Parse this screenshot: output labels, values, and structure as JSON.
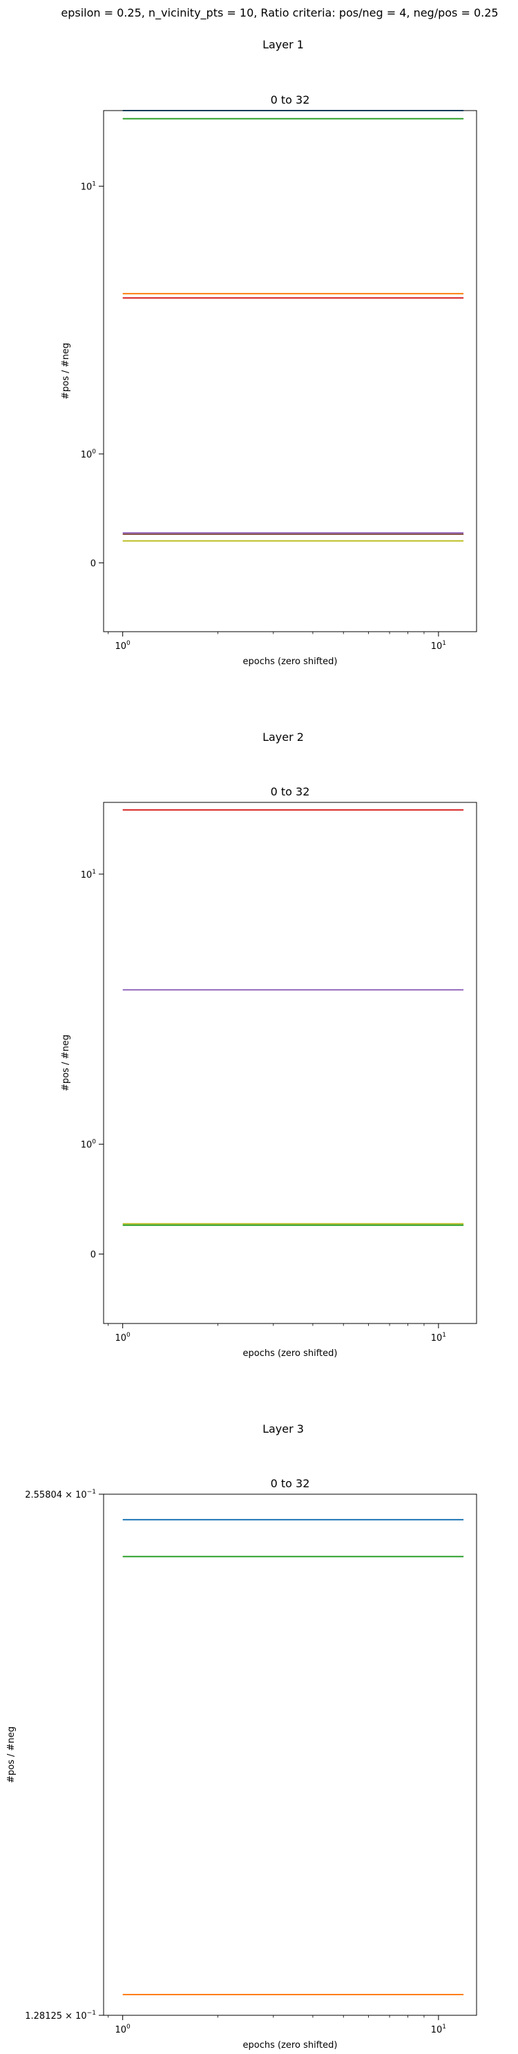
{
  "figure_title": "epsilon = 0.25, n_vicinity_pts = 10, Ratio criteria: pos/neg = 4, neg/pos = 0.25",
  "chart_data": [
    {
      "type": "line",
      "section_title": "Layer 1",
      "title": "0 to 32",
      "xlabel": "epochs (zero shifted)",
      "ylabel": "#pos / #neg",
      "xscale": "log",
      "yscale": "symlog",
      "xlim": [
        0.87,
        13.2
      ],
      "ylim": [
        -0.55,
        16.8
      ],
      "x_ticks": [
        {
          "value": 1,
          "label": "10",
          "exp": "0"
        },
        {
          "value": 10,
          "label": "10",
          "exp": "1"
        }
      ],
      "y_ticks": [
        {
          "value": 0,
          "label": "0",
          "exp": ""
        },
        {
          "value": 1,
          "label": "10",
          "exp": "0"
        },
        {
          "value": 10,
          "label": "10",
          "exp": "1"
        }
      ],
      "x": [
        1,
        12
      ],
      "series": [
        {
          "color": "#1f77b4",
          "values": [
            16.8,
            16.8
          ]
        },
        {
          "color": "#2ca02c",
          "values": [
            15.9,
            15.9
          ]
        },
        {
          "color": "#ff7f0e",
          "values": [
            4.55,
            4.55
          ]
        },
        {
          "color": "#d62728",
          "values": [
            4.4,
            4.4
          ]
        },
        {
          "color": "#9467bd",
          "values": [
            0.21,
            0.21
          ]
        },
        {
          "color": "#8c564b",
          "values": [
            0.2,
            0.2
          ]
        },
        {
          "color": "#bcbd22",
          "values": [
            0.15,
            0.15
          ]
        }
      ]
    },
    {
      "type": "line",
      "section_title": "Layer 2",
      "title": "0 to 32",
      "xlabel": "epochs (zero shifted)",
      "ylabel": "#pos / #neg",
      "xscale": "log",
      "yscale": "symlog",
      "xlim": [
        0.87,
        13.2
      ],
      "ylim": [
        -0.55,
        16.3
      ],
      "x_ticks": [
        {
          "value": 1,
          "label": "10",
          "exp": "0"
        },
        {
          "value": 10,
          "label": "10",
          "exp": "1"
        }
      ],
      "y_ticks": [
        {
          "value": 0,
          "label": "0",
          "exp": ""
        },
        {
          "value": 1,
          "label": "10",
          "exp": "0"
        },
        {
          "value": 10,
          "label": "10",
          "exp": "1"
        }
      ],
      "x": [
        1,
        12
      ],
      "series": [
        {
          "color": "#d62728",
          "values": [
            15.5,
            15.5
          ]
        },
        {
          "color": "#9467bd",
          "values": [
            4.3,
            4.3
          ]
        },
        {
          "color": "#bcbd22",
          "values": [
            0.21,
            0.21
          ]
        },
        {
          "color": "#2ca02c",
          "values": [
            0.2,
            0.2
          ]
        }
      ]
    },
    {
      "type": "line",
      "section_title": "Layer 3",
      "title": "0 to 32",
      "xlabel": "epochs (zero shifted)",
      "ylabel": "#pos / #neg",
      "xscale": "log",
      "yscale": "log",
      "xlim": [
        0.87,
        13.2
      ],
      "ylim": [
        0.128125,
        0.255804
      ],
      "x_ticks": [
        {
          "value": 1,
          "label": "10",
          "exp": "0"
        },
        {
          "value": 10,
          "label": "10",
          "exp": "1"
        }
      ],
      "y_ticks": [
        {
          "value": 0.255804,
          "label": "2.55804 × 10",
          "exp": "−1"
        },
        {
          "value": 0.128125,
          "label": "1.28125 × 10",
          "exp": "−1"
        }
      ],
      "x": [
        1,
        12
      ],
      "series": [
        {
          "color": "#1f77b4",
          "values": [
            0.2473,
            0.2473
          ]
        },
        {
          "color": "#2ca02c",
          "values": [
            0.2355,
            0.2355
          ]
        },
        {
          "color": "#ff7f0e",
          "values": [
            0.1317,
            0.1317
          ]
        }
      ]
    }
  ]
}
